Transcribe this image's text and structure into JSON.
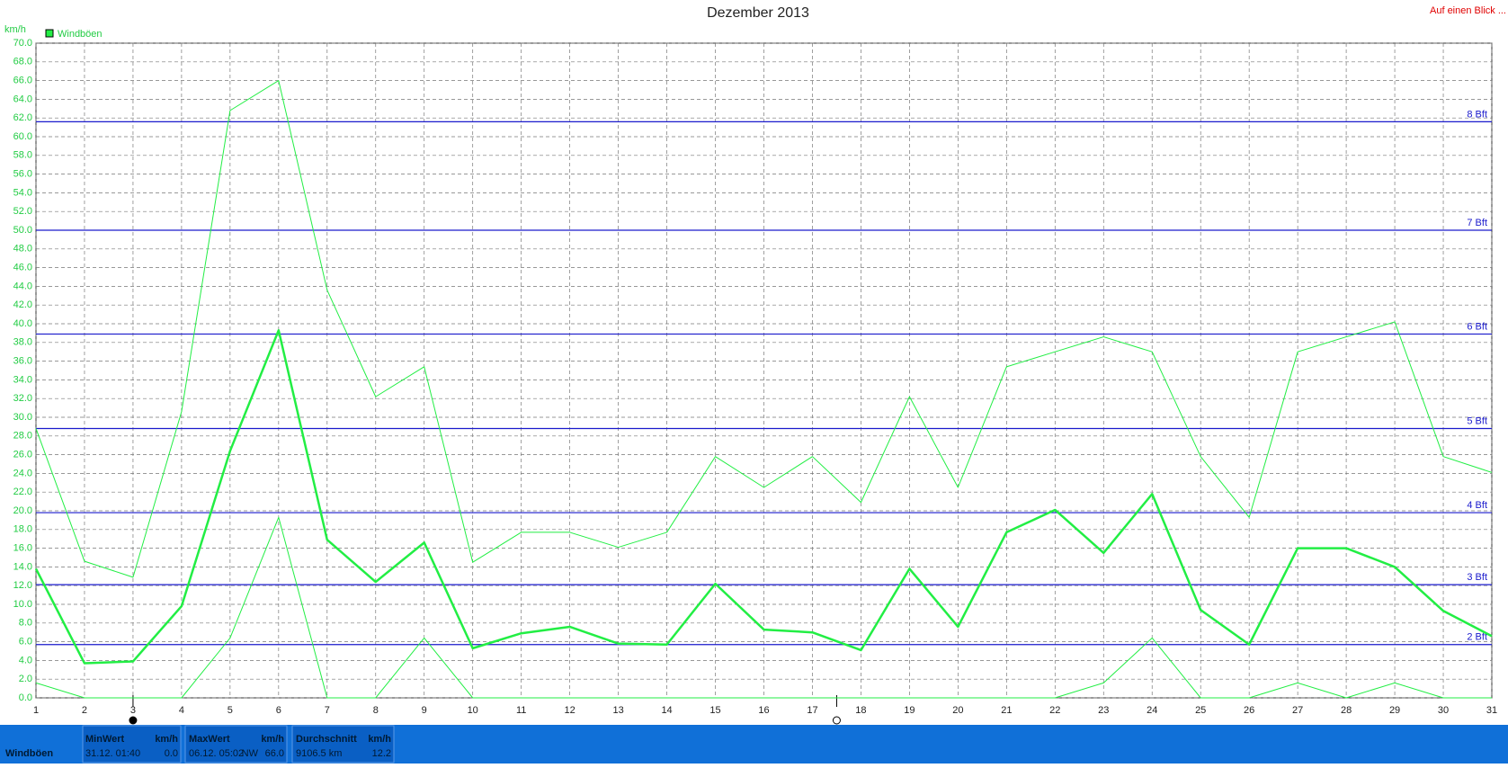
{
  "chart_data": {
    "type": "line",
    "title": "Dezember 2013",
    "link": "Auf einen Blick ...",
    "y_label": "km/h",
    "x": [
      1,
      2,
      3,
      4,
      5,
      6,
      7,
      8,
      9,
      10,
      11,
      12,
      13,
      14,
      15,
      16,
      17,
      18,
      19,
      20,
      21,
      22,
      23,
      24,
      25,
      26,
      27,
      28,
      29,
      30,
      31
    ],
    "xlim": [
      1,
      31
    ],
    "xticks": [
      1,
      2,
      3,
      4,
      5,
      6,
      7,
      8,
      9,
      10,
      11,
      12,
      13,
      14,
      15,
      16,
      17,
      18,
      19,
      20,
      21,
      22,
      23,
      24,
      25,
      26,
      27,
      28,
      29,
      30,
      31
    ],
    "ylim": [
      0,
      70
    ],
    "yticks": [
      {
        "value": 0,
        "label": "0.0"
      },
      {
        "value": 2,
        "label": "2.0"
      },
      {
        "value": 4,
        "label": "4.0"
      },
      {
        "value": 6,
        "label": "6.0"
      },
      {
        "value": 8,
        "label": "8.0"
      },
      {
        "value": 10,
        "label": "10.0"
      },
      {
        "value": 12,
        "label": "12.0"
      },
      {
        "value": 14,
        "label": "14.0"
      },
      {
        "value": 16,
        "label": "16.0"
      },
      {
        "value": 18,
        "label": "18.0"
      },
      {
        "value": 20,
        "label": "20.0"
      },
      {
        "value": 22,
        "label": "22.0"
      },
      {
        "value": 24,
        "label": "24.0"
      },
      {
        "value": 26,
        "label": "26.0"
      },
      {
        "value": 28,
        "label": "28.0"
      },
      {
        "value": 30,
        "label": "30.0"
      },
      {
        "value": 32,
        "label": "32.0"
      },
      {
        "value": 34,
        "label": "34.0"
      },
      {
        "value": 36,
        "label": "36.0"
      },
      {
        "value": 38,
        "label": "38.0"
      },
      {
        "value": 40,
        "label": "40.0"
      },
      {
        "value": 42,
        "label": "42.0"
      },
      {
        "value": 44,
        "label": "44.0"
      },
      {
        "value": 46,
        "label": "46.0"
      },
      {
        "value": 48,
        "label": "48.0"
      },
      {
        "value": 50,
        "label": "50.0"
      },
      {
        "value": 52,
        "label": "52.0"
      },
      {
        "value": 54,
        "label": "54.0"
      },
      {
        "value": 56,
        "label": "56.0"
      },
      {
        "value": 58,
        "label": "58.0"
      },
      {
        "value": 60,
        "label": "60.0"
      },
      {
        "value": 62,
        "label": "62.0"
      },
      {
        "value": 64,
        "label": "64.0"
      },
      {
        "value": 66,
        "label": "66.0"
      },
      {
        "value": 68,
        "label": "68.0"
      },
      {
        "value": 70,
        "label": "70.0"
      }
    ],
    "grid": true,
    "series": [
      {
        "name": "Windböen",
        "color": "#22ee44",
        "line_width": 2.5,
        "values": [
          13.8,
          3.7,
          3.9,
          9.8,
          26.4,
          39.3,
          16.9,
          12.4,
          16.6,
          5.3,
          6.9,
          7.6,
          5.8,
          5.7,
          12.2,
          7.3,
          7.0,
          5.1,
          13.8,
          7.6,
          17.7,
          20.1,
          15.5,
          21.8,
          9.4,
          5.7,
          16.0,
          16.0,
          14.0,
          9.3,
          6.6
        ]
      },
      {
        "color": "#22ee44",
        "line_width": 1,
        "values": [
          28.8,
          14.6,
          12.9,
          30.6,
          62.8,
          66.0,
          43.6,
          32.2,
          35.4,
          14.5,
          17.7,
          17.7,
          16.1,
          17.7,
          25.8,
          22.5,
          25.8,
          20.9,
          32.2,
          22.5,
          35.4,
          37.0,
          38.6,
          37.0,
          25.8,
          19.3,
          37.0,
          38.6,
          40.2,
          25.8,
          24.1
        ]
      },
      {
        "color": "#22ee44",
        "line_width": 1,
        "values": [
          1.6,
          0,
          0,
          0,
          6.4,
          19.3,
          0,
          0,
          6.4,
          0,
          0,
          0,
          0,
          0,
          0,
          0,
          0,
          0,
          0,
          0,
          0,
          0,
          1.6,
          6.4,
          0,
          0,
          1.6,
          0,
          1.6,
          0,
          0
        ]
      }
    ],
    "reference_lines": [
      {
        "value": 61.6,
        "label": "8 Bft"
      },
      {
        "value": 50.0,
        "label": "7 Bft"
      },
      {
        "value": 38.9,
        "label": "6 Bft"
      },
      {
        "value": 28.8,
        "label": "5 Bft"
      },
      {
        "value": 19.8,
        "label": "4 Bft"
      },
      {
        "value": 12.1,
        "label": "3 Bft"
      },
      {
        "value": 5.7,
        "label": "2 Bft"
      }
    ],
    "reference_color": "#1a1acc",
    "moon_markers": [
      {
        "x": 3,
        "filled": true
      },
      {
        "x": 17.5,
        "filled": false
      }
    ],
    "summary": {
      "name": "Windböen",
      "min": {
        "header": "MinWert",
        "unit": "km/h",
        "time": "31.12. 01:40",
        "value": "0.0"
      },
      "max": {
        "header": "MaxWert",
        "unit": "km/h",
        "time": "06.12. 05:02",
        "dir": "NW",
        "value": "66.0"
      },
      "avg": {
        "header": "Durchschnitt",
        "unit": "km/h",
        "time": "9106.5 km",
        "value": "12.2"
      }
    }
  }
}
